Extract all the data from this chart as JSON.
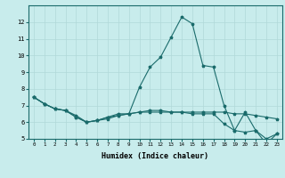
{
  "title": "",
  "xlabel": "Humidex (Indice chaleur)",
  "ylabel": "",
  "bg_color": "#c8ecec",
  "grid_color": "#b0d8d8",
  "line_color": "#1a6b6b",
  "xlim": [
    -0.5,
    23.5
  ],
  "ylim": [
    5,
    13
  ],
  "yticks": [
    5,
    6,
    7,
    8,
    9,
    10,
    11,
    12
  ],
  "xticks": [
    0,
    1,
    2,
    3,
    4,
    5,
    6,
    7,
    8,
    9,
    10,
    11,
    12,
    13,
    14,
    15,
    16,
    17,
    18,
    19,
    20,
    21,
    22,
    23
  ],
  "xtick_labels": [
    "0",
    "1",
    "2",
    "3",
    "4",
    "5",
    "6",
    "7",
    "8",
    "9",
    "10",
    "11",
    "12",
    "13",
    "14",
    "15",
    "16",
    "17",
    "18",
    "19",
    "20",
    "21",
    "22",
    "23"
  ],
  "series": [
    [
      7.5,
      7.1,
      6.8,
      6.7,
      6.3,
      6.0,
      6.1,
      6.3,
      6.5,
      6.5,
      8.1,
      9.3,
      9.9,
      11.1,
      12.3,
      11.9,
      9.4,
      9.3,
      7.0,
      5.5,
      6.6,
      5.5,
      4.7,
      5.3
    ],
    [
      7.5,
      7.1,
      6.8,
      6.7,
      6.3,
      6.0,
      6.1,
      6.2,
      6.4,
      6.5,
      6.6,
      6.6,
      6.6,
      6.6,
      6.6,
      6.6,
      6.6,
      6.6,
      6.6,
      6.5,
      6.5,
      6.4,
      6.3,
      6.2
    ],
    [
      7.5,
      7.1,
      6.8,
      6.7,
      6.4,
      6.0,
      6.1,
      6.3,
      6.4,
      6.5,
      6.6,
      6.7,
      6.7,
      6.6,
      6.6,
      6.5,
      6.5,
      6.5,
      5.9,
      5.5,
      5.4,
      5.5,
      5.0,
      5.3
    ]
  ]
}
